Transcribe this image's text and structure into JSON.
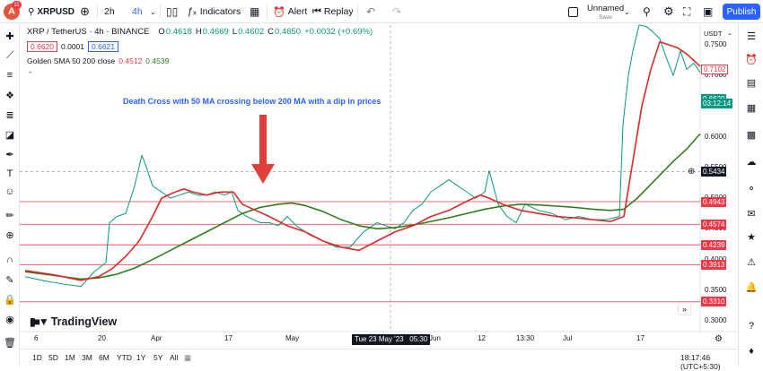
{
  "toolbar": {
    "avatar_letter": "A",
    "avatar_badge": "11",
    "symbol": "XRPUSD",
    "interval_2h": "2h",
    "interval_4h": "4h",
    "indicators": "Indicators",
    "alert": "Alert",
    "replay": "Replay",
    "layout_name": "Unnamed",
    "layout_status": "Save",
    "publish": "Publish"
  },
  "legend": {
    "title": "XRP / TetherUS · 4h · BINANCE",
    "o_label": "O",
    "o_value": "0.4618",
    "h_label": "H",
    "h_value": "0.4669",
    "l_label": "L",
    "l_value": "0.4602",
    "c_label": "C",
    "c_value": "0.4650",
    "change": "+0.0032 (+0.69%)",
    "bid": "0.6620",
    "spread": "0.0001",
    "ask": "0.6621",
    "indicator_name": "Golden SMA 50 200 close",
    "sma50_value": "0.4512",
    "sma200_value": "0.4539"
  },
  "price_axis": {
    "currency": "USDT",
    "labels": [
      "0.7500",
      "0.7000",
      "0.6500",
      "0.6000",
      "0.5500",
      "0.5000",
      "0.4500",
      "0.4000",
      "0.3500",
      "0.3000"
    ],
    "badges": [
      {
        "text": "0.7102",
        "kind": "red-outline",
        "price": 0.7102
      },
      {
        "text": "0.6620",
        "kind": "green",
        "price": 0.662
      },
      {
        "text": "03:12:14",
        "kind": "green",
        "price": 0.655
      },
      {
        "text": "0.5434",
        "kind": "dark",
        "price": 0.5434
      },
      {
        "text": "0.4943",
        "kind": "red",
        "price": 0.4943
      },
      {
        "text": "0.4574",
        "kind": "red",
        "price": 0.4574
      },
      {
        "text": "0.4239",
        "kind": "red",
        "price": 0.4239
      },
      {
        "text": "0.3913",
        "kind": "red",
        "price": 0.3913
      },
      {
        "text": "0.3310",
        "kind": "red",
        "price": 0.331
      }
    ]
  },
  "time_axis": {
    "labels": [
      "6",
      "20",
      "Apr",
      "17",
      "May",
      "Jun",
      "12",
      "13:30",
      "Jul",
      "17"
    ],
    "crosshair_label": "Tue 23 May '23   05:30"
  },
  "bottom": {
    "ranges": [
      "1D",
      "5D",
      "1M",
      "3M",
      "6M",
      "YTD",
      "1Y",
      "5Y",
      "All"
    ],
    "clock": "18:17:46 (UTC+5:30)"
  },
  "chart_data": {
    "type": "line",
    "annotation": "Death Cross with 50 MA crossing below 200 MA with a dip in prices",
    "watermark": "TradingView",
    "ylim": [
      0.3,
      0.78
    ],
    "horizontal_levels": [
      0.4943,
      0.4574,
      0.4239,
      0.3913,
      0.331
    ],
    "crosshair_price": 0.5434,
    "colors": {
      "price": "#089981",
      "sma50": "#e02828",
      "sma200": "#2e7d1b",
      "levels": "#f23645"
    },
    "series": [
      {
        "name": "Price",
        "x": [
          28,
          50,
          70,
          90,
          105,
          118,
          122,
          130,
          140,
          150,
          158,
          162,
          170,
          180,
          190,
          200,
          210,
          220,
          230,
          240,
          250,
          258,
          265,
          275,
          290,
          300,
          310,
          320,
          330,
          345,
          360,
          375,
          390,
          405,
          420,
          430,
          440,
          450,
          460,
          470,
          480,
          490,
          500,
          510,
          520,
          530,
          540,
          545,
          555,
          565,
          575,
          585,
          600,
          615,
          630,
          645,
          660,
          675,
          690,
          694,
          697,
          700,
          705,
          712,
          720,
          728,
          735,
          742,
          750,
          758,
          765,
          773,
          780
        ],
        "y": [
          0.372,
          0.365,
          0.36,
          0.356,
          0.38,
          0.395,
          0.46,
          0.47,
          0.475,
          0.52,
          0.57,
          0.555,
          0.52,
          0.51,
          0.5,
          0.505,
          0.51,
          0.505,
          0.505,
          0.51,
          0.505,
          0.51,
          0.48,
          0.47,
          0.46,
          0.46,
          0.455,
          0.47,
          0.455,
          0.44,
          0.43,
          0.42,
          0.42,
          0.445,
          0.46,
          0.455,
          0.45,
          0.46,
          0.48,
          0.49,
          0.51,
          0.52,
          0.53,
          0.52,
          0.51,
          0.5,
          0.51,
          0.545,
          0.49,
          0.47,
          0.46,
          0.49,
          0.48,
          0.475,
          0.465,
          0.47,
          0.465,
          0.465,
          0.47,
          0.62,
          0.66,
          0.7,
          0.74,
          0.79,
          0.78,
          0.77,
          0.76,
          0.73,
          0.7,
          0.74,
          0.71,
          0.72,
          0.705
        ]
      },
      {
        "name": "SMA 50",
        "x": [
          28,
          60,
          90,
          110,
          125,
          140,
          155,
          170,
          180,
          195,
          205,
          215,
          230,
          245,
          260,
          270,
          285,
          300,
          320,
          340,
          360,
          380,
          400,
          420,
          440,
          460,
          480,
          500,
          520,
          535,
          545,
          560,
          580,
          600,
          620,
          640,
          660,
          680,
          695,
          705,
          715,
          725,
          735,
          745,
          755,
          765,
          780
        ],
        "y": [
          0.382,
          0.375,
          0.366,
          0.372,
          0.385,
          0.405,
          0.43,
          0.47,
          0.5,
          0.51,
          0.515,
          0.51,
          0.505,
          0.51,
          0.51,
          0.49,
          0.48,
          0.47,
          0.455,
          0.445,
          0.43,
          0.42,
          0.415,
          0.43,
          0.445,
          0.455,
          0.47,
          0.48,
          0.495,
          0.505,
          0.5,
          0.49,
          0.48,
          0.475,
          0.47,
          0.468,
          0.465,
          0.462,
          0.47,
          0.56,
          0.65,
          0.71,
          0.755,
          0.75,
          0.745,
          0.735,
          0.715
        ]
      },
      {
        "name": "SMA 200",
        "x": [
          28,
          60,
          90,
          110,
          130,
          150,
          170,
          190,
          210,
          230,
          250,
          270,
          290,
          310,
          325,
          340,
          360,
          380,
          400,
          420,
          440,
          460,
          480,
          500,
          520,
          540,
          560,
          580,
          600,
          620,
          640,
          660,
          680,
          695,
          710,
          730,
          750,
          765,
          780
        ],
        "y": [
          0.38,
          0.374,
          0.368,
          0.37,
          0.376,
          0.386,
          0.4,
          0.415,
          0.43,
          0.445,
          0.46,
          0.475,
          0.485,
          0.49,
          0.492,
          0.488,
          0.478,
          0.465,
          0.455,
          0.45,
          0.452,
          0.456,
          0.462,
          0.468,
          0.475,
          0.482,
          0.487,
          0.49,
          0.489,
          0.487,
          0.485,
          0.482,
          0.48,
          0.482,
          0.5,
          0.53,
          0.56,
          0.58,
          0.605
        ]
      }
    ]
  }
}
